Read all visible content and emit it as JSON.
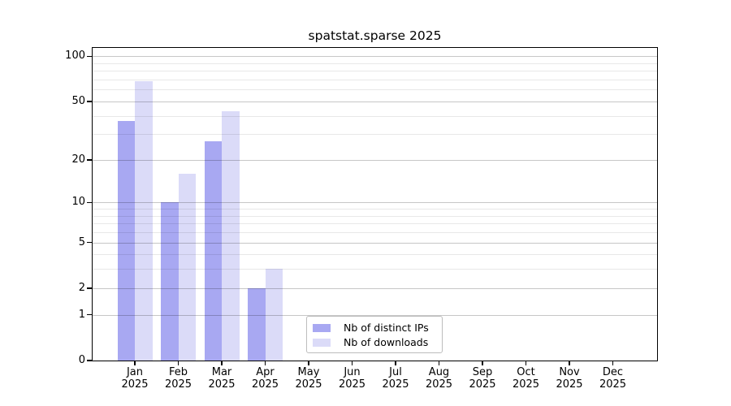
{
  "chart_data": {
    "type": "bar",
    "title": "spatstat.sparse 2025",
    "months": [
      "Jan",
      "Feb",
      "Mar",
      "Apr",
      "May",
      "Jun",
      "Jul",
      "Aug",
      "Sep",
      "Oct",
      "Nov",
      "Dec"
    ],
    "year": "2025",
    "series": [
      {
        "name": "Nb of distinct IPs",
        "color": "#a8a8f2",
        "values": [
          37,
          10,
          27,
          2,
          0,
          0,
          0,
          0,
          0,
          0,
          0,
          0
        ]
      },
      {
        "name": "Nb of downloads",
        "color": "#dbdbf8",
        "values": [
          68,
          16,
          43,
          3,
          0,
          0,
          0,
          0,
          0,
          0,
          0,
          0
        ]
      }
    ],
    "y_axis": {
      "scale": "log10(1+x)",
      "tick_values": [
        0,
        1,
        2,
        5,
        10,
        20,
        50,
        100
      ],
      "minor_gridline_values": [
        3,
        4,
        6,
        7,
        8,
        9,
        30,
        40,
        60,
        70,
        80,
        90
      ],
      "range_max": 115
    },
    "x_axis": {
      "label_format": "month over year, two lines"
    },
    "legend": {
      "position": "bottom-center-inside",
      "border_color": "#bdbdbd"
    },
    "grid": true,
    "background": "#ffffff",
    "frame": "full box, black"
  }
}
